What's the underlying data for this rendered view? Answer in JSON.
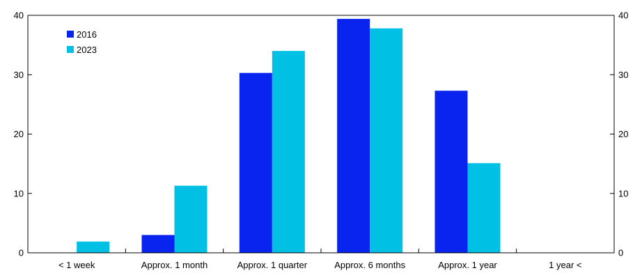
{
  "chart_data": {
    "type": "bar",
    "categories": [
      "< 1 week",
      "Approx. 1 month",
      "Approx. 1 quarter",
      "Approx. 6 months",
      "Approx. 1 year",
      "1 year <"
    ],
    "series": [
      {
        "name": "2016",
        "color": "#0a24f0",
        "values": [
          0,
          3,
          30.3,
          39.4,
          27.3,
          0
        ]
      },
      {
        "name": "2023",
        "color": "#00c0e4",
        "values": [
          1.9,
          11.3,
          34,
          37.8,
          15.1,
          0
        ]
      }
    ],
    "ylim": [
      0,
      40
    ],
    "yticks": [
      "0",
      "10",
      "20",
      "30",
      "40"
    ],
    "ytick_values": [
      0,
      10,
      20,
      30,
      40
    ],
    "right_axis": true,
    "legend_position": "top-left",
    "grid": false
  }
}
